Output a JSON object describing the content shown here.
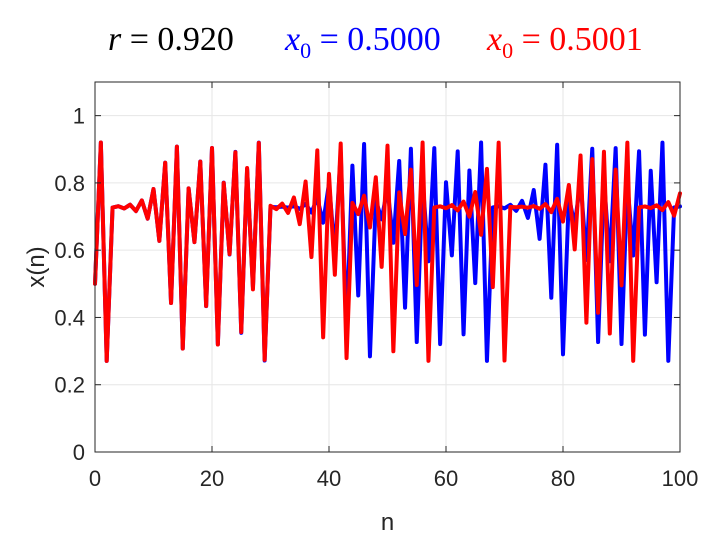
{
  "chart_data": {
    "type": "line",
    "title": {
      "parts": [
        {
          "var": "r",
          "sub": "",
          "eq": " = ",
          "val": "0.920",
          "color": "#000000"
        },
        {
          "var": "x",
          "sub": "0",
          "eq": " = ",
          "val": "0.5000",
          "color": "#0000ff"
        },
        {
          "var": "x",
          "sub": "0",
          "eq": " = ",
          "val": "0.5001",
          "color": "#ff0000"
        }
      ]
    },
    "xlabel": "n",
    "ylabel": "x(n)",
    "xlim": [
      0,
      100
    ],
    "ylim": [
      0,
      1.1
    ],
    "xticks": [
      0,
      20,
      40,
      60,
      80,
      100
    ],
    "yticks": [
      0,
      0.2,
      0.4,
      0.6,
      0.8,
      1
    ],
    "ytick_labels": [
      "0",
      "0.2",
      "0.4",
      "0.6",
      "0.8",
      "1"
    ],
    "grid": true,
    "r": 0.92,
    "series": [
      {
        "x0": 0.5,
        "color": "#0000ff"
      },
      {
        "x0": 0.5001,
        "color": "#ff0000"
      }
    ]
  },
  "colors": {
    "axis": "#262626",
    "grid": "#e6e6e6"
  }
}
